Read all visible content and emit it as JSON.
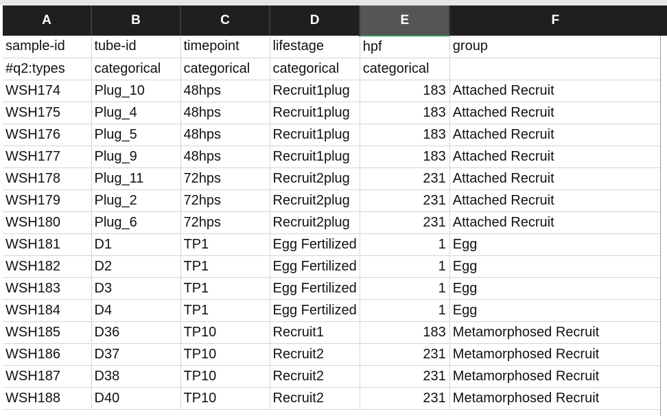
{
  "columns": [
    "A",
    "B",
    "C",
    "D",
    "E",
    "F"
  ],
  "selected_column": "E",
  "rows": [
    [
      "sample-id",
      "tube-id",
      "timepoint",
      "lifestage",
      "hpf",
      "group"
    ],
    [
      "#q2:types",
      "categorical",
      "categorical",
      "categorical",
      "categorical",
      ""
    ],
    [
      "WSH174",
      "Plug_10",
      "48hps",
      "Recruit1plug",
      "183",
      "Attached Recruit"
    ],
    [
      "WSH175",
      "Plug_4",
      "48hps",
      "Recruit1plug",
      "183",
      "Attached Recruit"
    ],
    [
      "WSH176",
      "Plug_5",
      "48hps",
      "Recruit1plug",
      "183",
      "Attached Recruit"
    ],
    [
      "WSH177",
      "Plug_9",
      "48hps",
      "Recruit1plug",
      "183",
      "Attached Recruit"
    ],
    [
      "WSH178",
      "Plug_11",
      "72hps",
      "Recruit2plug",
      "231",
      "Attached Recruit"
    ],
    [
      "WSH179",
      "Plug_2",
      "72hps",
      "Recruit2plug",
      "231",
      "Attached Recruit"
    ],
    [
      "WSH180",
      "Plug_6",
      "72hps",
      "Recruit2plug",
      "231",
      "Attached Recruit"
    ],
    [
      "WSH181",
      "D1",
      "TP1",
      "Egg Fertilized",
      "1",
      "Egg"
    ],
    [
      "WSH182",
      "D2",
      "TP1",
      "Egg Fertilized",
      "1",
      "Egg"
    ],
    [
      "WSH183",
      "D3",
      "TP1",
      "Egg Fertilized",
      "1",
      "Egg"
    ],
    [
      "WSH184",
      "D4",
      "TP1",
      "Egg Fertilized",
      "1",
      "Egg"
    ],
    [
      "WSH185",
      "D36",
      "TP10",
      "Recruit1",
      "183",
      "Metamorphosed Recruit"
    ],
    [
      "WSH186",
      "D37",
      "TP10",
      "Recruit2",
      "231",
      "Metamorphosed Recruit"
    ],
    [
      "WSH187",
      "D38",
      "TP10",
      "Recruit2",
      "231",
      "Metamorphosed Recruit"
    ],
    [
      "WSH188",
      "D40",
      "TP10",
      "Recruit2",
      "231",
      "Metamorphosed Recruit"
    ]
  ]
}
